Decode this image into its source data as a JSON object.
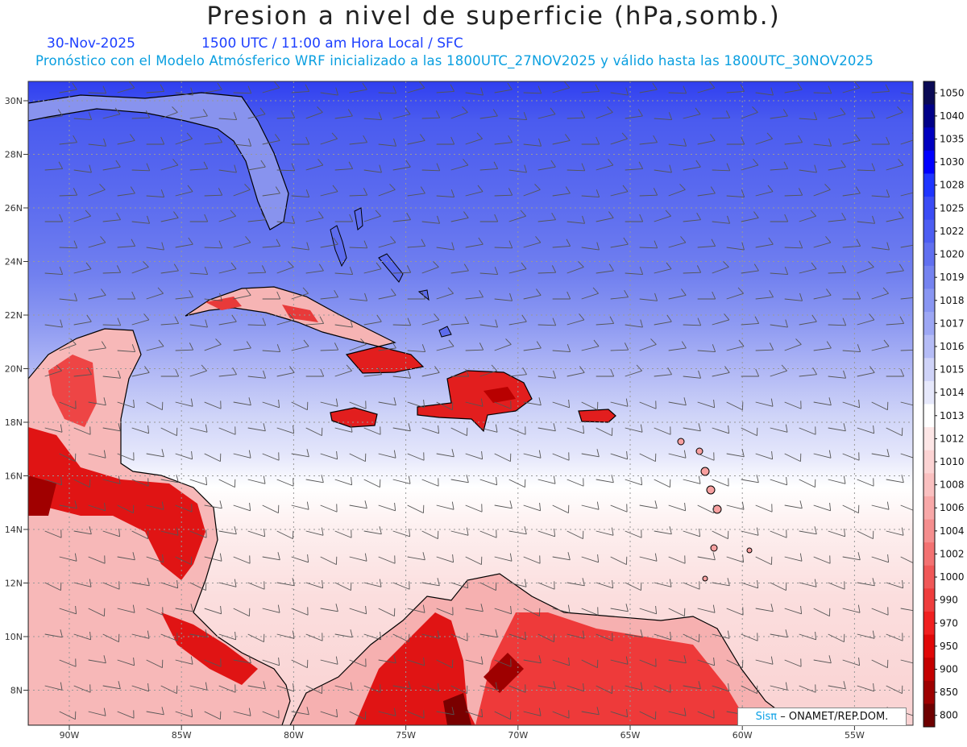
{
  "header": {
    "title": "Presion a nivel de superficie (hPa,somb.)",
    "date": "30-Nov-2025",
    "time_info": "1500 UTC / 11:00 am Hora Local / SFC",
    "forecast_info": "Pronóstico con el Modelo Atmósferico WRF inicializado a las 1800UTC_27NOV2025 y válido hasta las  1800UTC_30NOV2025"
  },
  "axes": {
    "lat_labels": [
      "30N",
      "28N",
      "26N",
      "24N",
      "22N",
      "20N",
      "18N",
      "16N",
      "14N",
      "12N",
      "10N",
      "8N"
    ],
    "lon_labels": [
      "90W",
      "85W",
      "80W",
      "75W",
      "70W",
      "65W",
      "60W",
      "55W"
    ]
  },
  "colorbar": {
    "levels": [
      "1050",
      "1040",
      "1035",
      "1030",
      "1028",
      "1025",
      "1022",
      "1020",
      "1019",
      "1018",
      "1017",
      "1016",
      "1015",
      "1014",
      "1013",
      "1012",
      "1010",
      "1008",
      "1006",
      "1004",
      "1002",
      "1000",
      "990",
      "970",
      "950",
      "900",
      "850",
      "800"
    ],
    "colors": [
      "#0a0a55",
      "#000088",
      "#0000c0",
      "#0000ff",
      "#1f35ff",
      "#3b4cf5",
      "#4d5ef2",
      "#6170f0",
      "#7583f0",
      "#8996f2",
      "#9da7f4",
      "#b5bcf6",
      "#cfd3f8",
      "#e6e8fb",
      "#ffffff",
      "#fde6e6",
      "#fcd3d3",
      "#fac0c0",
      "#f8a8a8",
      "#f58e8e",
      "#f37272",
      "#f05858",
      "#ee3d3d",
      "#f02020",
      "#e00808",
      "#c40000",
      "#9e0000",
      "#6e0000"
    ]
  },
  "credit": {
    "brand": "Sisπ",
    "text": "– ONAMET/REP.DOM."
  }
}
